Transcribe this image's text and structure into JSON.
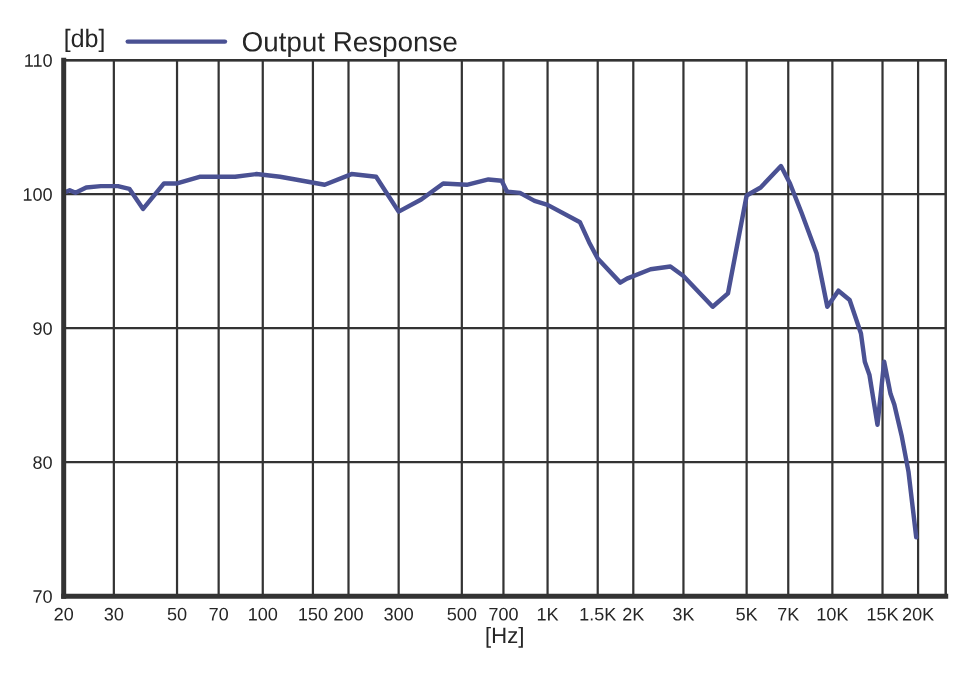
{
  "chart_data": {
    "type": "line",
    "ylabel": "[db]",
    "xlabel": "[Hz]",
    "log": "x",
    "grid": true,
    "legend": "top",
    "line_style": "solid",
    "marker": "none",
    "xlim": [
      20,
      25000
    ],
    "ylim": [
      70,
      110
    ],
    "xticks": [
      20,
      30,
      50,
      70,
      100,
      150,
      200,
      300,
      500,
      700,
      {
        "value": 1000,
        "label": "1K"
      },
      {
        "value": 1500,
        "label": "1.5K"
      },
      {
        "value": 2000,
        "label": "2K"
      },
      {
        "value": 3000,
        "label": "3K"
      },
      {
        "value": 5000,
        "label": "5K"
      },
      {
        "value": 7000,
        "label": "7K"
      },
      {
        "value": 10000,
        "label": "10K"
      },
      {
        "value": 15000,
        "label": "15K"
      },
      {
        "value": 20000,
        "label": "20K"
      }
    ],
    "yticks": [
      70,
      80,
      90,
      100,
      110
    ],
    "x": [
      20,
      21,
      22,
      24,
      27,
      31,
      34,
      38,
      45,
      50,
      60,
      80,
      95,
      115,
      165,
      205,
      250,
      300,
      360,
      430,
      520,
      620,
      690,
      720,
      800,
      900,
      1000,
      1300,
      1400,
      1500,
      1800,
      1900,
      2300,
      2700,
      3000,
      3800,
      4300,
      5000,
      5600,
      6600,
      7100,
      7800,
      8800,
      9600,
      10500,
      11500,
      12600,
      13000,
      13500,
      14400,
      15200,
      16000,
      16500,
      17500,
      18500,
      19700
    ],
    "series": [
      {
        "name": "Output Response",
        "color": "#4a5193",
        "values": [
          100.1,
          100.3,
          100.1,
          100.5,
          100.6,
          100.6,
          100.4,
          98.9,
          100.8,
          100.8,
          101.3,
          101.3,
          101.5,
          101.3,
          100.7,
          101.5,
          101.3,
          98.7,
          99.6,
          100.8,
          100.7,
          101.1,
          101.0,
          100.2,
          100.1,
          99.5,
          99.2,
          97.9,
          96.4,
          95.2,
          93.4,
          93.7,
          94.4,
          94.6,
          93.9,
          91.6,
          92.6,
          99.9,
          100.5,
          102.1,
          100.8,
          98.6,
          95.6,
          91.6,
          92.8,
          92.1,
          89.6,
          87.5,
          86.5,
          82.8,
          87.5,
          85.1,
          84.3,
          82.0,
          79.3,
          74.4
        ]
      }
    ]
  }
}
